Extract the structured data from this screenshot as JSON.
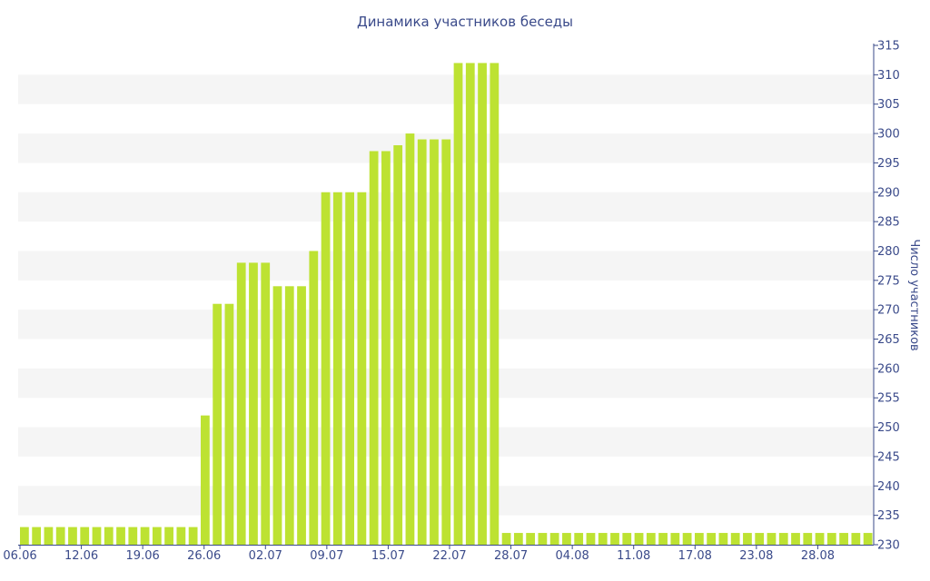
{
  "chart_data": {
    "type": "bar",
    "title": "Динамика участников беседы",
    "ylabel": "Число участников",
    "xlabel": "",
    "ylim": [
      230,
      315
    ],
    "yticks": [
      230,
      235,
      240,
      245,
      250,
      255,
      260,
      265,
      270,
      275,
      280,
      285,
      290,
      295,
      300,
      305,
      310,
      315
    ],
    "y_axis_position": "right",
    "x_tick_labels": [
      "06.06",
      "12.06",
      "19.06",
      "26.06",
      "02.07",
      "09.07",
      "15.07",
      "22.07",
      "28.07",
      "04.08",
      "11.08",
      "17.08",
      "23.08",
      "28.08"
    ],
    "values": [
      233,
      233,
      233,
      233,
      233,
      233,
      233,
      233,
      233,
      233,
      233,
      233,
      233,
      233,
      233,
      252,
      271,
      271,
      278,
      278,
      278,
      274,
      274,
      274,
      280,
      290,
      290,
      290,
      290,
      297,
      297,
      298,
      300,
      299,
      299,
      299,
      312,
      312,
      312,
      312,
      232,
      232,
      232,
      232,
      232,
      232,
      232,
      232,
      232,
      232,
      232,
      232,
      232,
      232,
      232,
      232,
      232,
      232,
      232,
      232,
      232,
      232,
      232,
      232,
      232,
      232,
      232,
      232,
      232,
      232,
      232
    ],
    "colors": {
      "bar": "#bde232",
      "band": "#f5f5f5",
      "text": "#3a4a8a",
      "axis": "#3a4a8a"
    },
    "grid": "alternating horizontal bands",
    "legend": "none"
  }
}
